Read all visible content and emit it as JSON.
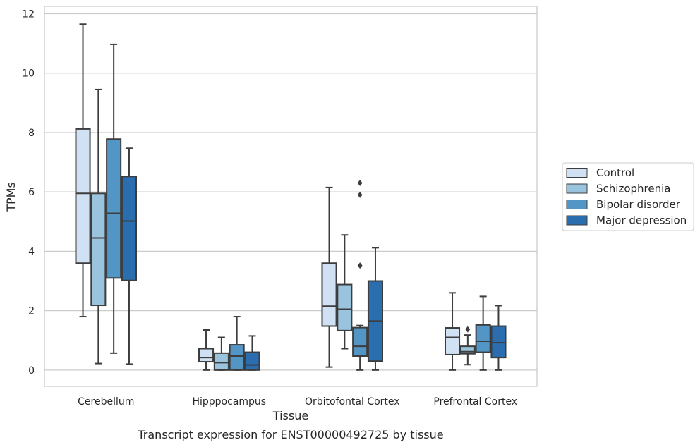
{
  "chart_data": {
    "type": "box",
    "title": "",
    "caption": "Transcript expression for ENST00000492725 by tissue",
    "xlabel": "Tissue",
    "ylabel": "TPMs",
    "ylim": [
      -0.55,
      12.25
    ],
    "yticks": [
      0,
      2,
      4,
      6,
      8,
      10,
      12
    ],
    "grid": "horizontal",
    "legend_position": "right, outside plot",
    "categories": [
      "Cerebellum",
      "Hipppocampus",
      "Orbitofontal Cortex",
      "Prefrontal Cortex"
    ],
    "series": [
      {
        "name": "Control",
        "color": "#cfe1f2",
        "boxes": [
          {
            "whislo": 1.8,
            "q1": 3.6,
            "med": 5.95,
            "q3": 8.12,
            "whishi": 11.65,
            "fliers": []
          },
          {
            "whislo": 0.0,
            "q1": 0.28,
            "med": 0.42,
            "q3": 0.72,
            "whishi": 1.35,
            "fliers": []
          },
          {
            "whislo": 0.1,
            "q1": 1.48,
            "med": 2.15,
            "q3": 3.6,
            "whishi": 6.15,
            "fliers": []
          },
          {
            "whislo": 0.0,
            "q1": 0.52,
            "med": 1.1,
            "q3": 1.42,
            "whishi": 2.6,
            "fliers": []
          }
        ]
      },
      {
        "name": "Schizophrenia",
        "color": "#9ac4de",
        "boxes": [
          {
            "whislo": 0.22,
            "q1": 2.18,
            "med": 4.45,
            "q3": 5.95,
            "whishi": 9.45,
            "fliers": []
          },
          {
            "whislo": 0.0,
            "q1": 0.0,
            "med": 0.25,
            "q3": 0.57,
            "whishi": 1.1,
            "fliers": []
          },
          {
            "whislo": 0.72,
            "q1": 1.33,
            "med": 2.05,
            "q3": 2.88,
            "whishi": 4.55,
            "fliers": []
          },
          {
            "whislo": 0.18,
            "q1": 0.55,
            "med": 0.62,
            "q3": 0.8,
            "whishi": 1.18,
            "fliers": [
              1.37
            ]
          }
        ]
      },
      {
        "name": "Bipolar disorder",
        "color": "#5396c6",
        "boxes": [
          {
            "whislo": 0.57,
            "q1": 3.1,
            "med": 5.28,
            "q3": 7.78,
            "whishi": 10.97,
            "fliers": []
          },
          {
            "whislo": 0.0,
            "q1": 0.0,
            "med": 0.47,
            "q3": 0.85,
            "whishi": 1.8,
            "fliers": []
          },
          {
            "whislo": 0.0,
            "q1": 0.47,
            "med": 0.8,
            "q3": 1.43,
            "whishi": 1.5,
            "fliers": [
              3.52,
              5.9,
              6.3
            ]
          },
          {
            "whislo": 0.0,
            "q1": 0.6,
            "med": 0.97,
            "q3": 1.52,
            "whishi": 2.48,
            "fliers": []
          }
        ]
      },
      {
        "name": "Major depression",
        "color": "#2b6eb0",
        "boxes": [
          {
            "whislo": 0.2,
            "q1": 3.02,
            "med": 5.02,
            "q3": 6.52,
            "whishi": 7.47,
            "fliers": []
          },
          {
            "whislo": 0.0,
            "q1": 0.0,
            "med": 0.17,
            "q3": 0.6,
            "whishi": 1.15,
            "fliers": []
          },
          {
            "whislo": 0.0,
            "q1": 0.3,
            "med": 1.65,
            "q3": 3.0,
            "whishi": 4.12,
            "fliers": []
          },
          {
            "whislo": 0.0,
            "q1": 0.42,
            "med": 0.92,
            "q3": 1.48,
            "whishi": 2.17,
            "fliers": []
          }
        ]
      }
    ]
  }
}
